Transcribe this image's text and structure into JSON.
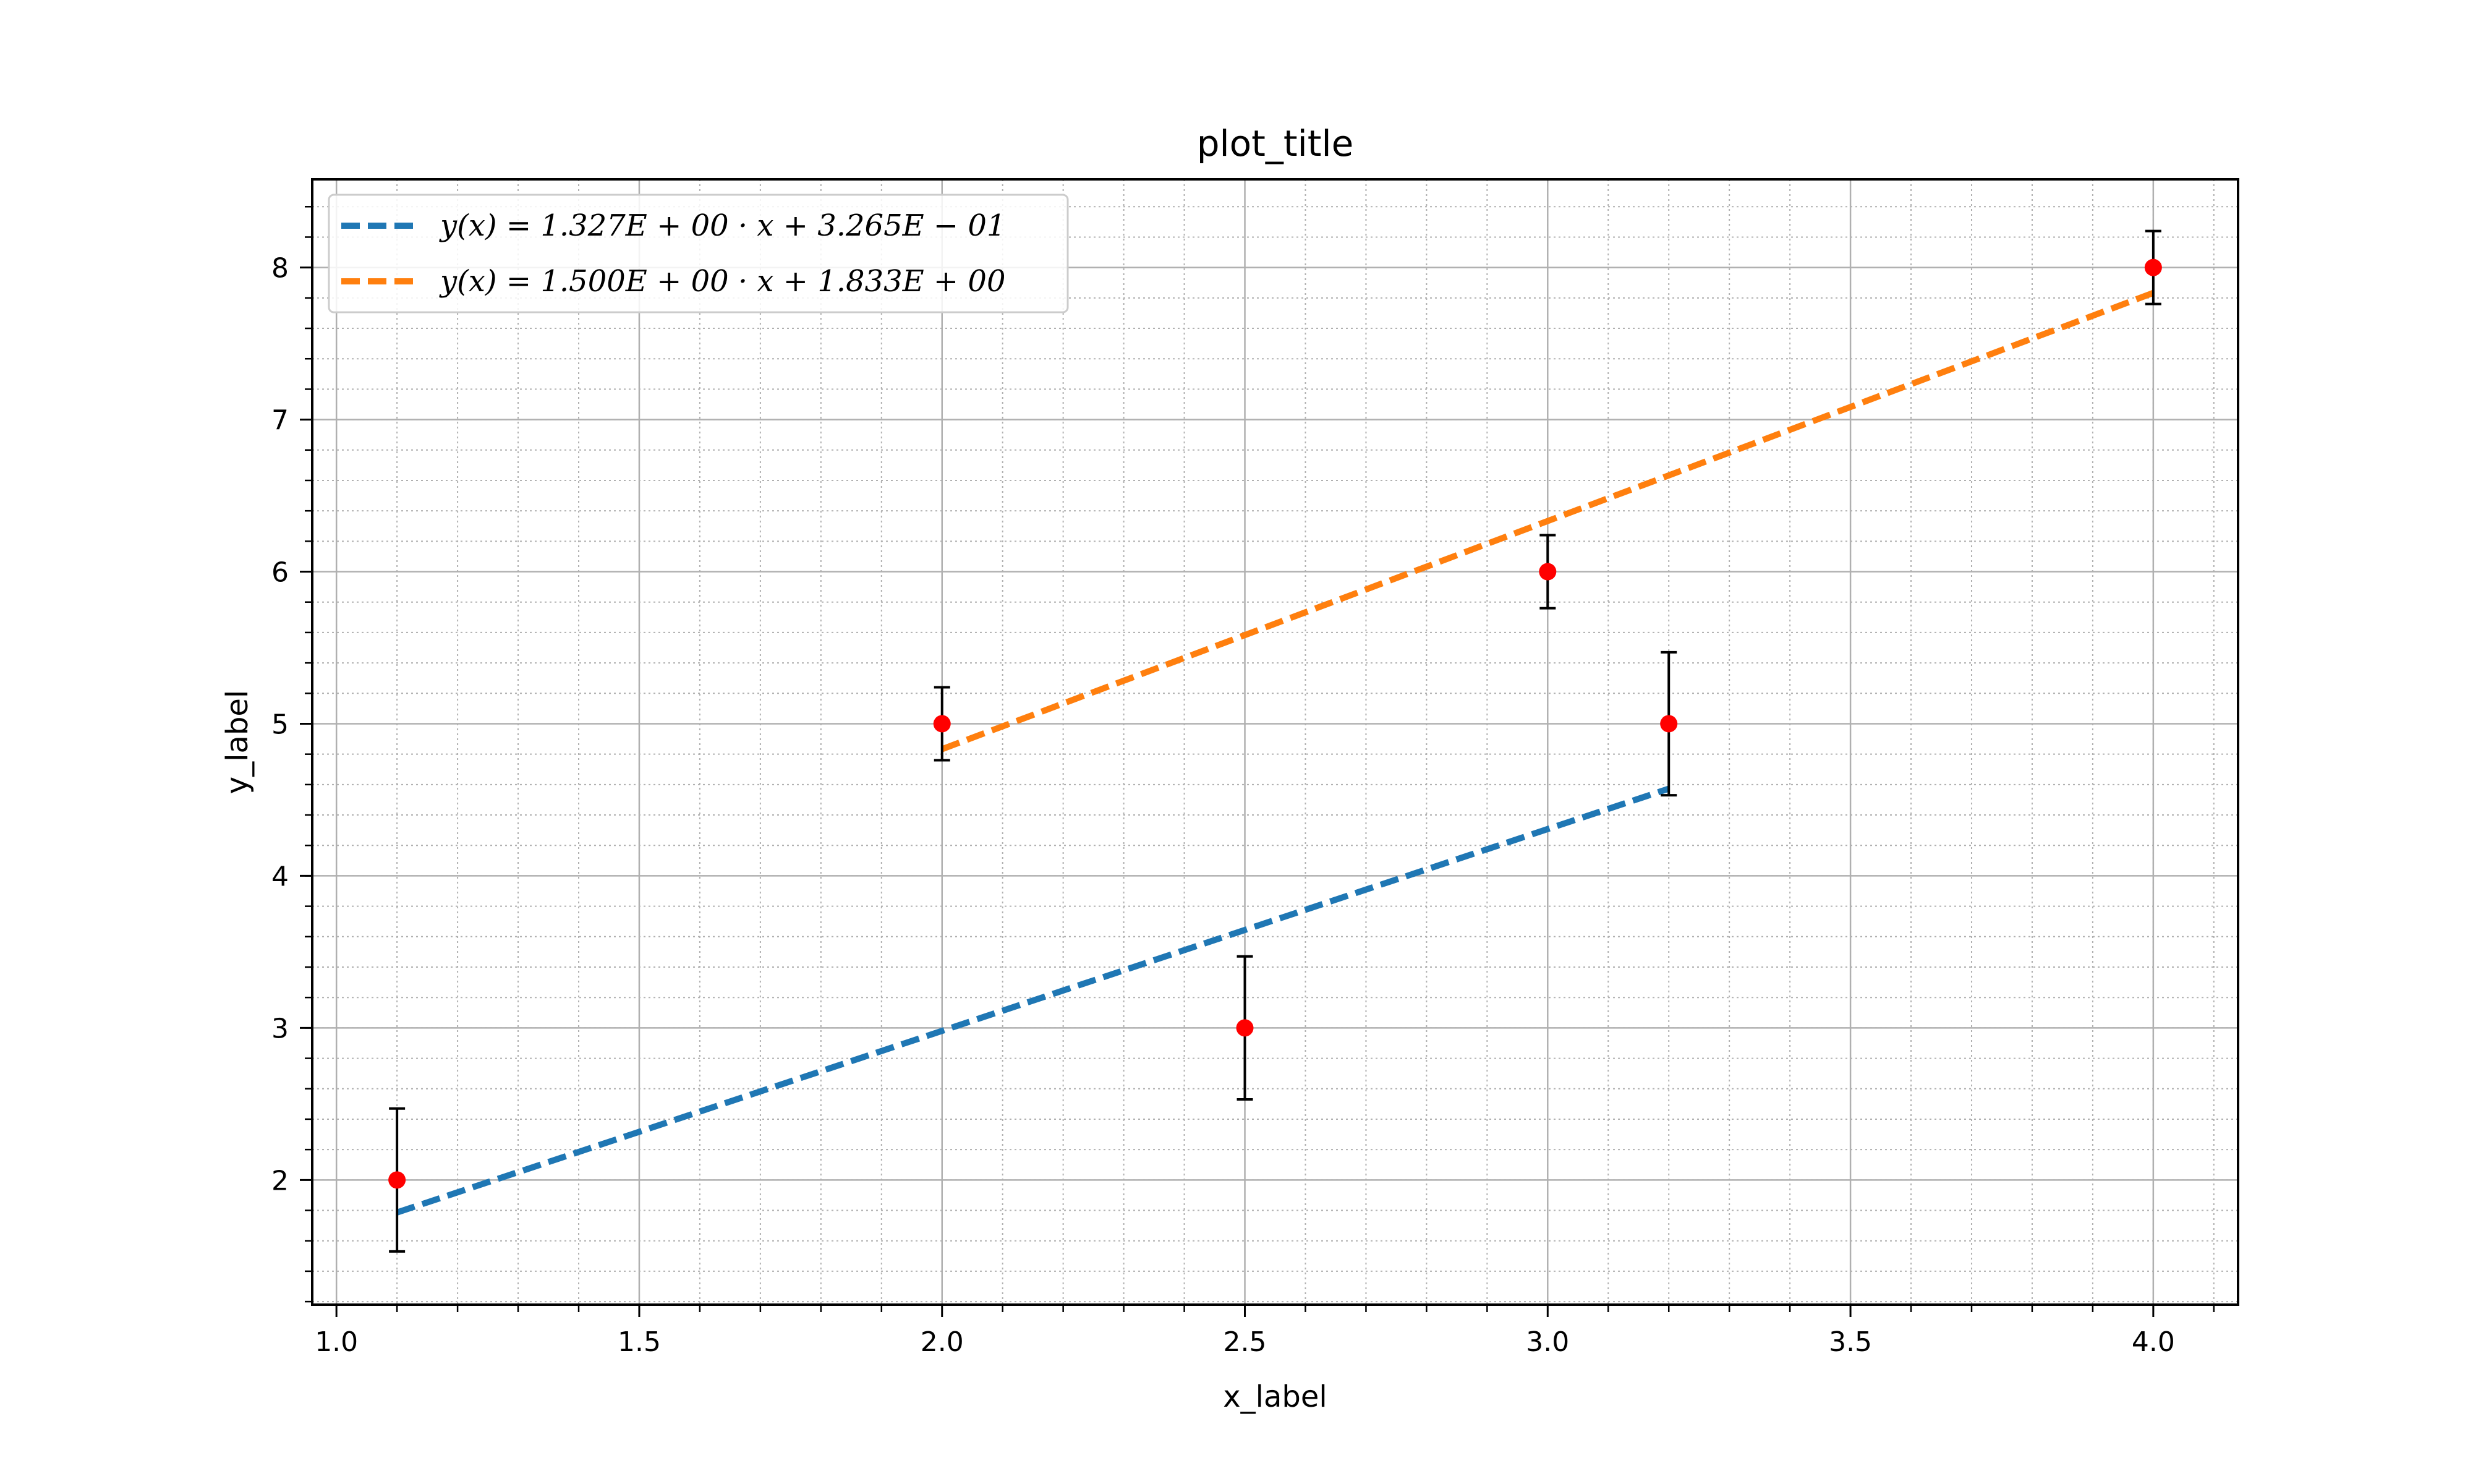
{
  "chart_data": {
    "type": "scatter",
    "title": "plot_title",
    "xlabel": "x_label",
    "ylabel": "y_label",
    "xlim": [
      0.96,
      4.14
    ],
    "ylim": [
      1.18,
      8.58
    ],
    "xticks": [
      1.0,
      1.5,
      2.0,
      2.5,
      3.0,
      3.5,
      4.0
    ],
    "xtick_labels": [
      "1.0",
      "1.5",
      "2.0",
      "2.5",
      "3.0",
      "3.5",
      "4.0"
    ],
    "yticks": [
      2,
      3,
      4,
      5,
      6,
      7,
      8
    ],
    "ytick_labels": [
      "2",
      "3",
      "4",
      "5",
      "6",
      "7",
      "8"
    ],
    "x_minor_step": 0.1,
    "y_minor_step": 0.2,
    "grid": true,
    "legend_position": "top-left",
    "points": [
      {
        "x": 1.1,
        "y": 2.0,
        "err": 0.47
      },
      {
        "x": 2.0,
        "y": 5.0,
        "err": 0.24
      },
      {
        "x": 2.5,
        "y": 3.0,
        "err": 0.47
      },
      {
        "x": 3.0,
        "y": 6.0,
        "err": 0.24
      },
      {
        "x": 3.2,
        "y": 5.0,
        "err": 0.47
      },
      {
        "x": 4.0,
        "y": 8.0,
        "err": 0.24
      }
    ],
    "series": [
      {
        "label": "y(x) = 1.327E + 00 · x + 3.265E − 01",
        "slope": 1.327,
        "intercept": 0.3265,
        "x_range": [
          1.1,
          3.2
        ],
        "color": "#1f77b4"
      },
      {
        "label": "y(x) = 1.500E + 00 · x + 1.833E + 00",
        "slope": 1.5,
        "intercept": 1.833,
        "x_range": [
          2.0,
          4.0
        ],
        "color": "#ff7f0e"
      }
    ],
    "point_color": "#ff0000",
    "errorbar_color": "#000000"
  }
}
